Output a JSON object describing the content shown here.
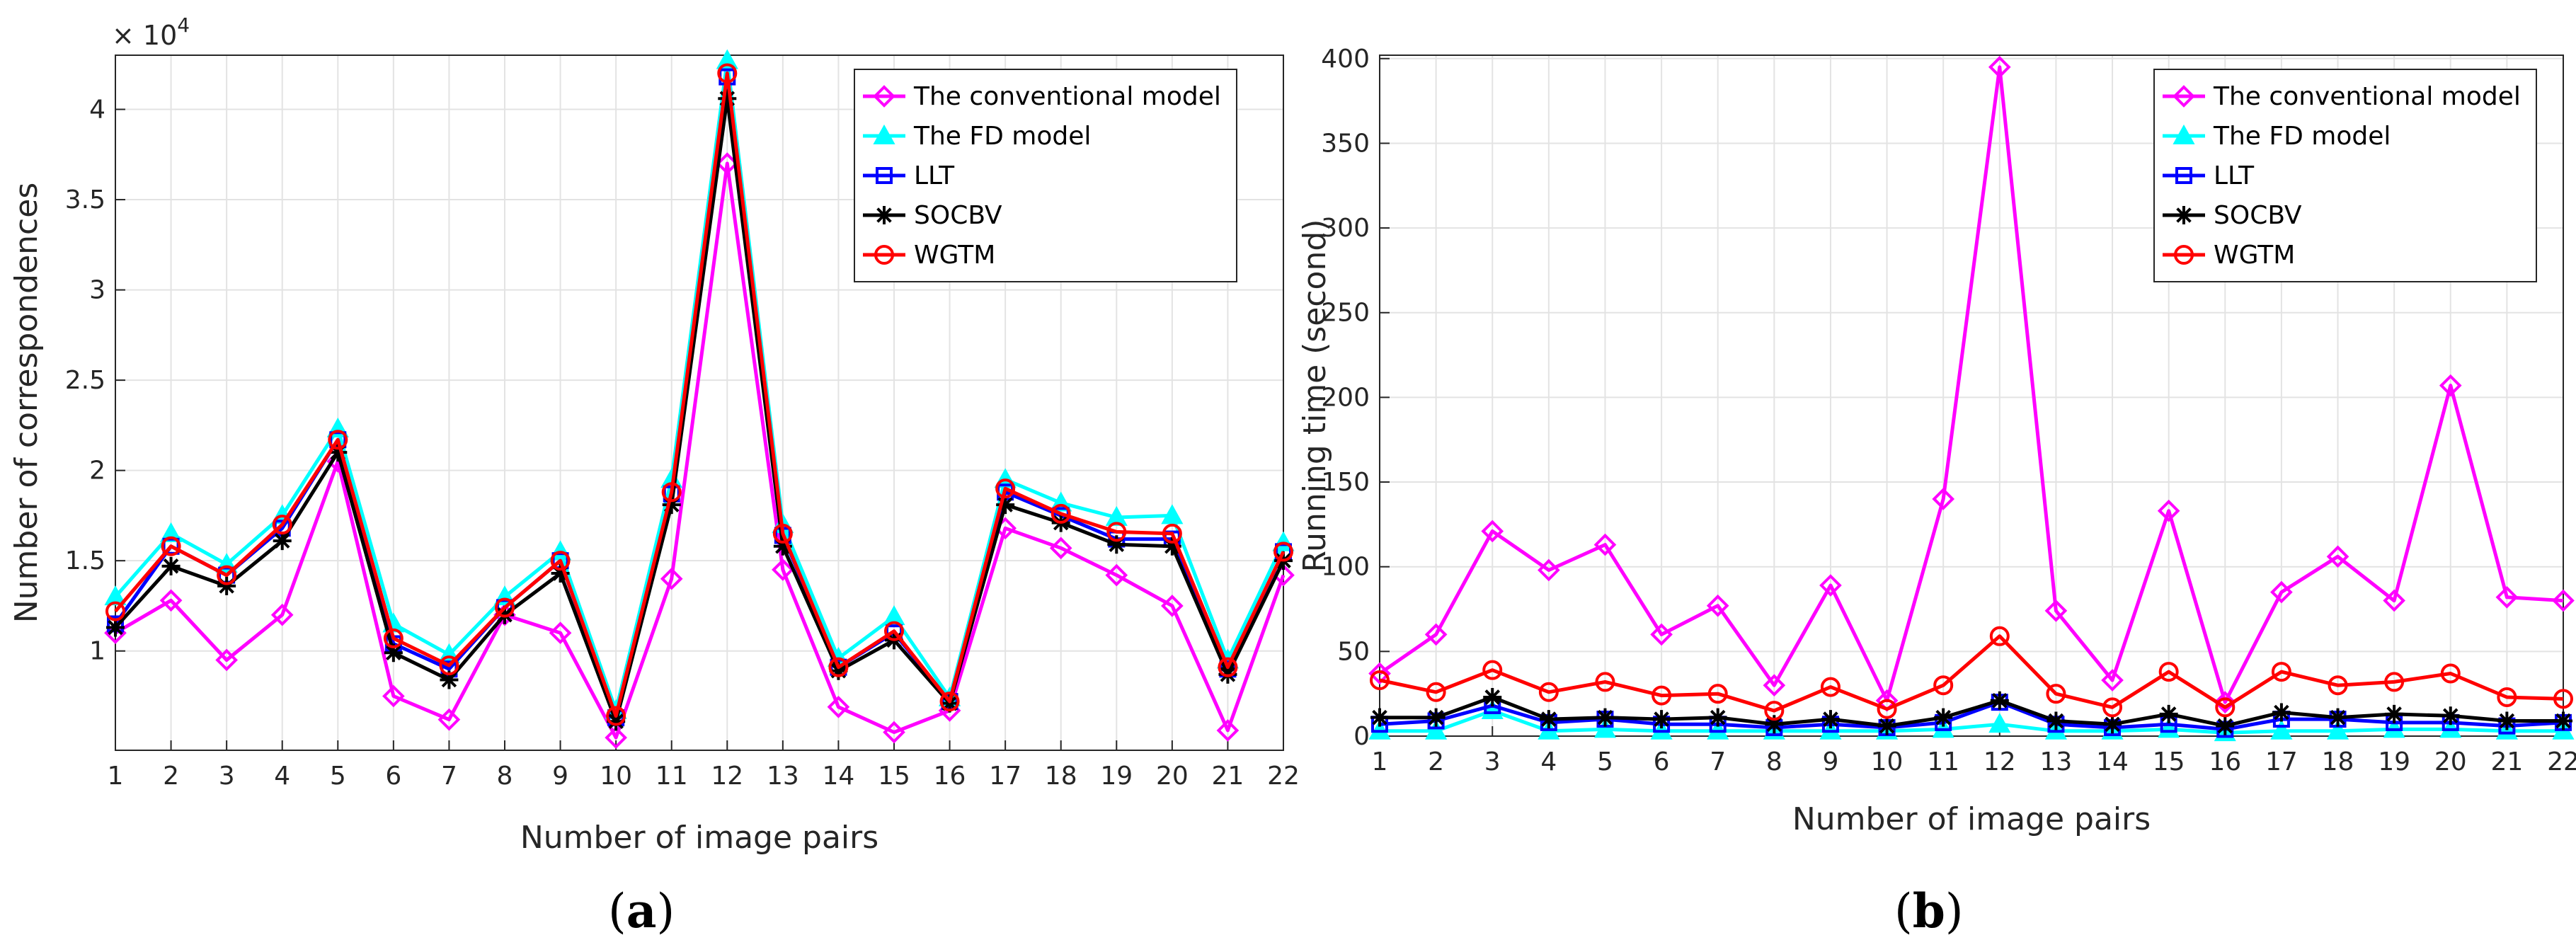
{
  "chart_data": [
    {
      "type": "line",
      "caption": "a",
      "xlabel": "Number of image pairs",
      "ylabel": "Number of correspondences",
      "exponent_base": "× 10",
      "exponent_power": "4",
      "x": [
        1,
        2,
        3,
        4,
        5,
        6,
        7,
        8,
        9,
        10,
        11,
        12,
        13,
        14,
        15,
        16,
        17,
        18,
        19,
        20,
        21,
        22
      ],
      "xlim": [
        1,
        22
      ],
      "ylim": [
        0.45,
        4.3
      ],
      "yticks": [
        1,
        1.5,
        2,
        2.5,
        3,
        3.5,
        4
      ],
      "ytick_labels": [
        "1",
        "1.5",
        "2",
        "2.5",
        "3",
        "3.5",
        "4"
      ],
      "grid": true,
      "legend_position": "top-right",
      "series": [
        {
          "name": "The conventional model",
          "color": "#ff00ff",
          "marker": "diamond",
          "values": [
            1.1,
            1.28,
            0.95,
            1.2,
            2.05,
            0.75,
            0.62,
            1.2,
            1.1,
            0.52,
            1.4,
            3.7,
            1.45,
            0.69,
            0.55,
            0.67,
            1.68,
            1.57,
            1.42,
            1.25,
            0.56,
            1.42
          ]
        },
        {
          "name": "The FD model",
          "color": "#00ffff",
          "marker": "triangle",
          "values": [
            1.3,
            1.65,
            1.48,
            1.75,
            2.23,
            1.15,
            0.98,
            1.3,
            1.55,
            0.67,
            1.95,
            4.27,
            1.7,
            0.96,
            1.19,
            0.74,
            1.95,
            1.82,
            1.74,
            1.75,
            0.95,
            1.6
          ]
        },
        {
          "name": "LLT",
          "color": "#0000ff",
          "marker": "square",
          "values": [
            1.15,
            1.58,
            1.42,
            1.68,
            2.17,
            1.04,
            0.9,
            1.24,
            1.5,
            0.63,
            1.87,
            4.18,
            1.64,
            0.91,
            1.1,
            0.72,
            1.88,
            1.75,
            1.62,
            1.62,
            0.9,
            1.55
          ]
        },
        {
          "name": "SOCBV",
          "color": "#000000",
          "marker": "star",
          "values": [
            1.13,
            1.47,
            1.36,
            1.61,
            2.1,
            0.99,
            0.84,
            1.2,
            1.43,
            0.61,
            1.81,
            4.06,
            1.58,
            0.89,
            1.06,
            0.71,
            1.81,
            1.71,
            1.59,
            1.58,
            0.87,
            1.5
          ]
        },
        {
          "name": "WGTM",
          "color": "#ff0000",
          "marker": "circle",
          "values": [
            1.22,
            1.58,
            1.42,
            1.7,
            2.17,
            1.07,
            0.92,
            1.24,
            1.5,
            0.64,
            1.88,
            4.2,
            1.65,
            0.91,
            1.11,
            0.72,
            1.9,
            1.76,
            1.66,
            1.65,
            0.91,
            1.55
          ]
        }
      ]
    },
    {
      "type": "line",
      "caption": "b",
      "xlabel": "Number of image pairs",
      "ylabel": "Running time (second)",
      "x": [
        1,
        2,
        3,
        4,
        5,
        6,
        7,
        8,
        9,
        10,
        11,
        12,
        13,
        14,
        15,
        16,
        17,
        18,
        19,
        20,
        21,
        22
      ],
      "xlim": [
        1,
        22
      ],
      "ylim": [
        0,
        402
      ],
      "yticks": [
        0,
        50,
        100,
        150,
        200,
        250,
        300,
        350,
        400
      ],
      "ytick_labels": [
        "0",
        "50",
        "100",
        "150",
        "200",
        "250",
        "300",
        "350",
        "400"
      ],
      "grid": true,
      "legend_position": "top-right",
      "series": [
        {
          "name": "The conventional model",
          "color": "#ff00ff",
          "marker": "diamond",
          "values": [
            37,
            60,
            121,
            98,
            113,
            60,
            77,
            30,
            89,
            21,
            140,
            395,
            74,
            33,
            133,
            20,
            85,
            106,
            80,
            207,
            82,
            80
          ]
        },
        {
          "name": "The FD model",
          "color": "#00ffff",
          "marker": "triangle",
          "values": [
            3,
            3,
            15,
            3,
            4,
            3,
            3,
            3,
            3,
            3,
            4,
            7,
            3,
            3,
            4,
            2,
            3,
            3,
            4,
            4,
            3,
            3
          ]
        },
        {
          "name": "LLT",
          "color": "#0000ff",
          "marker": "square",
          "values": [
            7,
            9,
            18,
            8,
            10,
            7,
            7,
            5,
            7,
            5,
            8,
            20,
            7,
            5,
            7,
            4,
            10,
            10,
            8,
            8,
            6,
            8
          ]
        },
        {
          "name": "SOCBV",
          "color": "#000000",
          "marker": "star",
          "values": [
            11,
            11,
            23,
            10,
            11,
            10,
            11,
            7,
            10,
            6,
            11,
            21,
            9,
            7,
            13,
            6,
            14,
            11,
            13,
            12,
            9,
            9
          ]
        },
        {
          "name": "WGTM",
          "color": "#ff0000",
          "marker": "circle",
          "values": [
            33,
            26,
            39,
            26,
            32,
            24,
            25,
            15,
            29,
            16,
            30,
            59,
            25,
            17,
            38,
            17,
            38,
            30,
            32,
            37,
            23,
            22
          ]
        }
      ]
    }
  ]
}
